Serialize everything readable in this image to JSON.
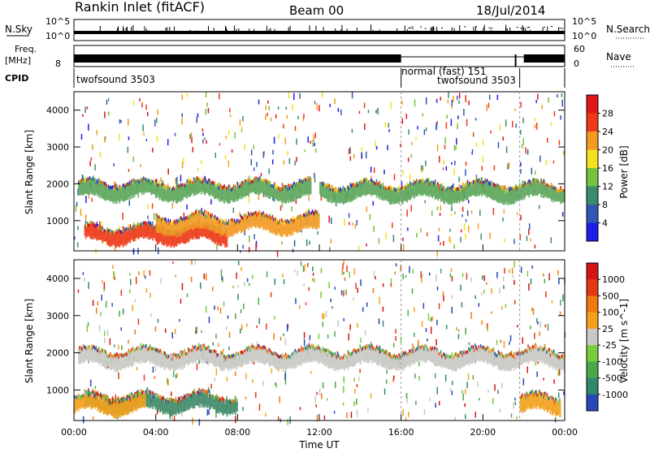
{
  "header": {
    "station": "Rankin Inlet (fitACF)",
    "beam": "Beam 00",
    "date": "18/Jul/2014"
  },
  "panels": {
    "nsky_label": "N.Sky",
    "nsky_ticks": [
      "10^5",
      "10^0"
    ],
    "nsearch_label": "N.Search",
    "nsearch_ticks": [
      "10^5",
      "10^0"
    ],
    "freq_label": "Freq.",
    "freq_unit": "[MHz]",
    "freq_ticks": [
      "8"
    ],
    "nave_label": "Nave",
    "nave_ticks": [
      "60",
      "0"
    ],
    "cpid_label": "CPID",
    "cpid_segments": [
      {
        "start_h": 0,
        "end_h": 16,
        "text": "twofsound 3503"
      },
      {
        "start_h": 16,
        "end_h": 21.8,
        "text": "normal (fast) 151"
      },
      {
        "start_h": 18.5,
        "end_h": 21.8,
        "text": "twofsound 3503"
      }
    ]
  },
  "chart_data": [
    {
      "type": "heatmap",
      "name": "power-panel",
      "ylabel": "Slant Range [km]",
      "yticks": [
        1000,
        2000,
        3000,
        4000
      ],
      "ylim": [
        180,
        4500
      ],
      "xlim_hours": [
        0,
        24
      ],
      "colorbar_label": "Power [dB]",
      "colorbar_ticks": [
        "4",
        "8",
        "12",
        "16",
        "20",
        "24",
        "28"
      ],
      "colorbar_colors": [
        "#1e1ee6",
        "#2e58b4",
        "#3b8c6c",
        "#74c23d",
        "#f2e21c",
        "#f49a1e",
        "#ee3a16",
        "#e0161b"
      ],
      "bands": [
        {
          "from_h": 0.2,
          "to_h": 11.6,
          "center_km": 1820,
          "color": "#5ca65c"
        },
        {
          "from_h": 12.0,
          "to_h": 24.0,
          "center_km": 1780,
          "color": "#5ca65c"
        },
        {
          "from_h": 0.5,
          "to_h": 7.5,
          "center_km": 620,
          "color": "#ec3a18"
        },
        {
          "from_h": 4.0,
          "to_h": 12.0,
          "center_km": 900,
          "color": "#f19a24"
        }
      ]
    },
    {
      "type": "heatmap",
      "name": "velocity-panel",
      "ylabel": "Slant Range [km]",
      "yticks": [
        1000,
        2000,
        3000,
        4000
      ],
      "ylim": [
        180,
        4500
      ],
      "xlim_hours": [
        0,
        24
      ],
      "xlabel": "Time UT",
      "xticks": [
        "00:00",
        "04:00",
        "08:00",
        "12:00",
        "16:00",
        "20:00",
        "00:00"
      ],
      "colorbar_label": "Velocity [m s^-1]",
      "colorbar_ticks": [
        "1000",
        "500",
        "100",
        "25",
        "-25",
        "-100",
        "-500",
        "-1000"
      ],
      "colorbar_colors": [
        "#2a47b8",
        "#2e8a6a",
        "#49a94a",
        "#79cc3b",
        "#c8c8c4",
        "#f2a11c",
        "#ee7a12",
        "#e33a14",
        "#d71414"
      ],
      "bands": [
        {
          "from_h": 0.2,
          "to_h": 24.0,
          "center_km": 1850,
          "color": "#c8c8c4"
        },
        {
          "from_h": 0.5,
          "to_h": 8.0,
          "center_km": 650,
          "color": "#3f8a6a"
        },
        {
          "from_h": 0.0,
          "to_h": 3.5,
          "center_km": 600,
          "color": "#f2a11c"
        },
        {
          "from_h": 21.8,
          "to_h": 23.8,
          "center_km": 610,
          "color": "#f2a11c"
        }
      ]
    }
  ]
}
